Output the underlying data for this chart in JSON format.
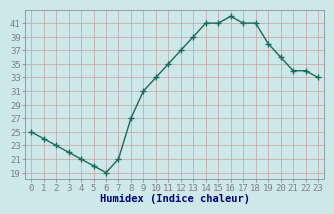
{
  "x": [
    0,
    1,
    2,
    3,
    4,
    5,
    6,
    7,
    8,
    9,
    10,
    11,
    12,
    13,
    14,
    15,
    16,
    17,
    18,
    19,
    20,
    21,
    22,
    23
  ],
  "y": [
    25,
    24,
    23,
    22,
    21,
    20,
    19,
    21,
    27,
    31,
    33,
    35,
    37,
    39,
    41,
    41,
    42,
    41,
    41,
    38,
    36,
    34,
    34,
    33
  ],
  "xlabel": "Humidex (Indice chaleur)",
  "xlim": [
    -0.5,
    23.5
  ],
  "ylim": [
    18,
    43
  ],
  "yticks": [
    19,
    21,
    23,
    25,
    27,
    29,
    31,
    33,
    35,
    37,
    39,
    41
  ],
  "xticks": [
    0,
    1,
    2,
    3,
    4,
    5,
    6,
    7,
    8,
    9,
    10,
    11,
    12,
    13,
    14,
    15,
    16,
    17,
    18,
    19,
    20,
    21,
    22,
    23
  ],
  "line_color": "#1a6b5a",
  "marker": "+",
  "bg_color": "#cce8e8",
  "grid_color": "#c8a0a0",
  "axis_color": "#808080",
  "font_color": "#000000",
  "xlabel_color": "#000080",
  "font_size": 6.5,
  "xlabel_fontsize": 7.5,
  "linewidth": 1.0,
  "markersize": 4,
  "markeredgewidth": 1.0
}
